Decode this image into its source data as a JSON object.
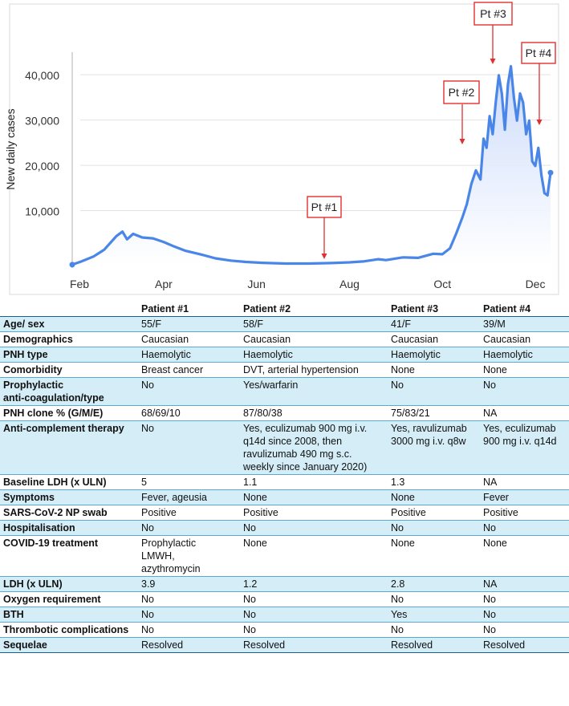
{
  "chart_data": {
    "type": "area",
    "ylabel": "New daily cases",
    "xlabel": "",
    "x_ticks": [
      "Feb",
      "Apr",
      "Jun",
      "Aug",
      "Oct",
      "Dec"
    ],
    "y_ticks": [
      "10,000",
      "20,000",
      "30,000",
      "40,000"
    ],
    "ylim": [
      0,
      48000
    ],
    "grid": true,
    "line_color": "#4a86e8",
    "fill_color": "#dde7fb",
    "points": [
      [
        "2020-02-01",
        200
      ],
      [
        "2020-02-07",
        900
      ],
      [
        "2020-02-15",
        2000
      ],
      [
        "2020-02-22",
        3500
      ],
      [
        "2020-03-01",
        6500
      ],
      [
        "2020-03-05",
        7500
      ],
      [
        "2020-03-08",
        5800
      ],
      [
        "2020-03-12",
        7000
      ],
      [
        "2020-03-18",
        6200
      ],
      [
        "2020-03-25",
        6000
      ],
      [
        "2020-04-01",
        5200
      ],
      [
        "2020-04-08",
        4200
      ],
      [
        "2020-04-15",
        3300
      ],
      [
        "2020-04-25",
        2500
      ],
      [
        "2020-05-05",
        1600
      ],
      [
        "2020-05-15",
        1100
      ],
      [
        "2020-05-25",
        800
      ],
      [
        "2020-06-05",
        600
      ],
      [
        "2020-06-20",
        450
      ],
      [
        "2020-07-05",
        450
      ],
      [
        "2020-07-20",
        550
      ],
      [
        "2020-08-01",
        700
      ],
      [
        "2020-08-10",
        900
      ],
      [
        "2020-08-20",
        1400
      ],
      [
        "2020-08-25",
        1200
      ],
      [
        "2020-09-05",
        1800
      ],
      [
        "2020-09-15",
        1700
      ],
      [
        "2020-09-25",
        2600
      ],
      [
        "2020-10-01",
        2500
      ],
      [
        "2020-10-06",
        3800
      ],
      [
        "2020-10-10",
        7000
      ],
      [
        "2020-10-14",
        10500
      ],
      [
        "2020-10-17",
        13500
      ],
      [
        "2020-10-20",
        18000
      ],
      [
        "2020-10-23",
        21000
      ],
      [
        "2020-10-26",
        19000
      ],
      [
        "2020-10-28",
        28000
      ],
      [
        "2020-10-30",
        26000
      ],
      [
        "2020-11-01",
        33000
      ],
      [
        "2020-11-03",
        29000
      ],
      [
        "2020-11-05",
        36000
      ],
      [
        "2020-11-07",
        42000
      ],
      [
        "2020-11-09",
        38000
      ],
      [
        "2020-11-11",
        30000
      ],
      [
        "2020-11-13",
        40000
      ],
      [
        "2020-11-15",
        44000
      ],
      [
        "2020-11-17",
        37000
      ],
      [
        "2020-11-19",
        32000
      ],
      [
        "2020-11-21",
        38000
      ],
      [
        "2020-11-23",
        36000
      ],
      [
        "2020-11-25",
        29000
      ],
      [
        "2020-11-27",
        32000
      ],
      [
        "2020-11-29",
        23000
      ],
      [
        "2020-12-01",
        22000
      ],
      [
        "2020-12-03",
        26000
      ],
      [
        "2020-12-05",
        20000
      ],
      [
        "2020-12-07",
        16000
      ],
      [
        "2020-12-09",
        15500
      ],
      [
        "2020-12-11",
        20500
      ]
    ],
    "annotations": [
      {
        "label": "Pt #1",
        "date": "2020-07-15",
        "value": 500
      },
      {
        "label": "Pt #2",
        "date": "2020-10-07",
        "value": 28000
      },
      {
        "label": "Pt #3",
        "date": "2020-11-07",
        "value": 44500
      },
      {
        "label": "Pt #4",
        "date": "2020-12-01",
        "value": 31000
      }
    ],
    "annotation_color": "#e03030"
  },
  "table": {
    "columns": [
      "",
      "Patient #1",
      "Patient #2",
      "Patient #3",
      "Patient #4"
    ],
    "rows": [
      {
        "label": "Age/ sex",
        "shaded": true,
        "cells": [
          "55/F",
          "58/F",
          "41/F",
          "39/M"
        ]
      },
      {
        "label": "Demographics",
        "shaded": false,
        "cells": [
          "Caucasian",
          "Caucasian",
          "Caucasian",
          "Caucasian"
        ]
      },
      {
        "label": "PNH type",
        "shaded": true,
        "cells": [
          "Haemolytic",
          "Haemolytic",
          "Haemolytic",
          "Haemolytic"
        ]
      },
      {
        "label": "Comorbidity",
        "shaded": false,
        "cells": [
          "Breast cancer",
          "DVT, arterial hypertension",
          "None",
          "None"
        ]
      },
      {
        "label": "Prophylactic\nanti-coagulation/type",
        "shaded": true,
        "cells": [
          "No",
          "Yes/warfarin",
          "No",
          "No"
        ]
      },
      {
        "label": "PNH clone % (G/M/E)",
        "shaded": false,
        "cells": [
          "68/69/10",
          "87/80/38",
          "75/83/21",
          "NA"
        ]
      },
      {
        "label": "Anti-complement therapy",
        "shaded": true,
        "cells": [
          "No",
          "Yes, eculizumab 900 mg i.v.\nq14d since 2008, then\nravulizumab 490 mg s.c.\nweekly since January 2020)",
          "Yes, ravulizumab\n3000 mg i.v. q8w",
          "Yes, eculizumab\n900 mg i.v. q14d"
        ]
      },
      {
        "label": "Baseline LDH (x ULN)",
        "shaded": false,
        "cells": [
          "5",
          "1.1",
          "1.3",
          "NA"
        ]
      },
      {
        "label": "Symptoms",
        "shaded": true,
        "cells": [
          "Fever, ageusia",
          "None",
          "None",
          "Fever"
        ]
      },
      {
        "label": "SARS-CoV-2 NP swab",
        "shaded": false,
        "cells": [
          "Positive",
          "Positive",
          "Positive",
          "Positive"
        ]
      },
      {
        "label": "Hospitalisation",
        "shaded": true,
        "cells": [
          "No",
          "No",
          "No",
          "No"
        ]
      },
      {
        "label": "COVID-19 treatment",
        "shaded": false,
        "cells": [
          "Prophylactic\nLMWH,\nazythromycin",
          "None",
          "None",
          "None"
        ]
      },
      {
        "label": "LDH (x ULN)",
        "shaded": true,
        "cells": [
          "3.9",
          "1.2",
          "2.8",
          "NA"
        ]
      },
      {
        "label": "Oxygen requirement",
        "shaded": false,
        "cells": [
          "No",
          "No",
          "No",
          "No"
        ]
      },
      {
        "label": "BTH",
        "shaded": true,
        "cells": [
          "No",
          "No",
          "Yes",
          "No"
        ]
      },
      {
        "label": "Thrombotic complications",
        "shaded": false,
        "cells": [
          "No",
          "No",
          "No",
          "No"
        ]
      },
      {
        "label": "Sequelae",
        "shaded": true,
        "cells": [
          "Resolved",
          "Resolved",
          "Resolved",
          "Resolved"
        ]
      }
    ]
  }
}
